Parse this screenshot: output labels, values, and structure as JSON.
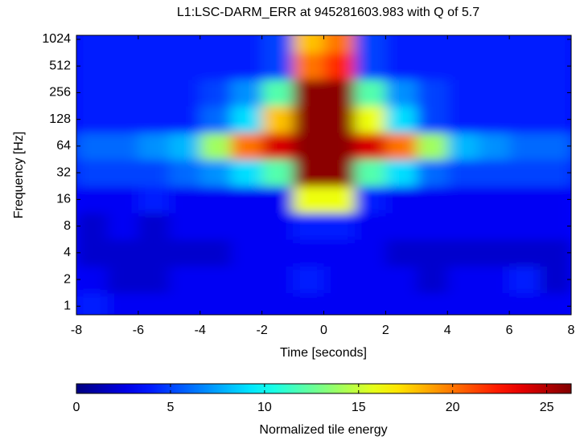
{
  "chart_data": {
    "type": "heatmap",
    "title": "L1:LSC-DARM_ERR at 945281603.983 with Q of 5.7",
    "x_label": "Time [seconds]",
    "y_label": "Frequency [Hz]",
    "colorbar_label": "Normalized tile energy",
    "colormap": "jet",
    "y_scale": "log2",
    "x": [
      -7.5,
      -6.5,
      -5.5,
      -4.5,
      -3.5,
      -2.5,
      -1.5,
      -0.5,
      0.5,
      1.5,
      2.5,
      3.5,
      4.5,
      5.5,
      6.5,
      7.5
    ],
    "y": [
      1,
      2,
      4,
      8,
      16,
      32,
      64,
      128,
      256,
      512,
      1024
    ],
    "values": [
      [
        4,
        3,
        3,
        3,
        3,
        3,
        3,
        3,
        3,
        3,
        3,
        3,
        3,
        3,
        3,
        3
      ],
      [
        3,
        2,
        2,
        3,
        3,
        3,
        3,
        4,
        3,
        3,
        3,
        2,
        3,
        3,
        4,
        2
      ],
      [
        2,
        2,
        2,
        2,
        2,
        3,
        3,
        3,
        3,
        3,
        2,
        2,
        2,
        2,
        2,
        2
      ],
      [
        2,
        3,
        2,
        3,
        3,
        3,
        3,
        4,
        4,
        3,
        3,
        3,
        3,
        3,
        3,
        3
      ],
      [
        3,
        3,
        4,
        3,
        3,
        3,
        3,
        16,
        16,
        4,
        3,
        3,
        3,
        3,
        3,
        3
      ],
      [
        5,
        5,
        5,
        6,
        7,
        9,
        12,
        26,
        26,
        12,
        9,
        6,
        5,
        5,
        5,
        5
      ],
      [
        6,
        6,
        7,
        8,
        14,
        20,
        24,
        26,
        26,
        24,
        20,
        14,
        8,
        7,
        6,
        6
      ],
      [
        4,
        4,
        4,
        4,
        6,
        9,
        18,
        26,
        26,
        16,
        9,
        5,
        4,
        4,
        4,
        4
      ],
      [
        4,
        4,
        4,
        4,
        5,
        7,
        12,
        26,
        26,
        12,
        7,
        5,
        4,
        4,
        4,
        4
      ],
      [
        4,
        4,
        4,
        4,
        4,
        4,
        5,
        20,
        22,
        5,
        4,
        4,
        4,
        4,
        4,
        4
      ],
      [
        4,
        4,
        4,
        4,
        4,
        4,
        5,
        18,
        20,
        5,
        4,
        4,
        4,
        4,
        4,
        4
      ]
    ],
    "xlim": [
      -8,
      8
    ],
    "xticks": [
      -8,
      -6,
      -4,
      -2,
      0,
      2,
      4,
      6,
      8
    ],
    "ylim": [
      0.8,
      1136
    ],
    "yticks": [
      1,
      2,
      4,
      8,
      16,
      32,
      64,
      128,
      256,
      512,
      1024
    ],
    "clim": [
      0,
      26.3
    ],
    "cticks": [
      0,
      5,
      10,
      15,
      20,
      25
    ]
  }
}
